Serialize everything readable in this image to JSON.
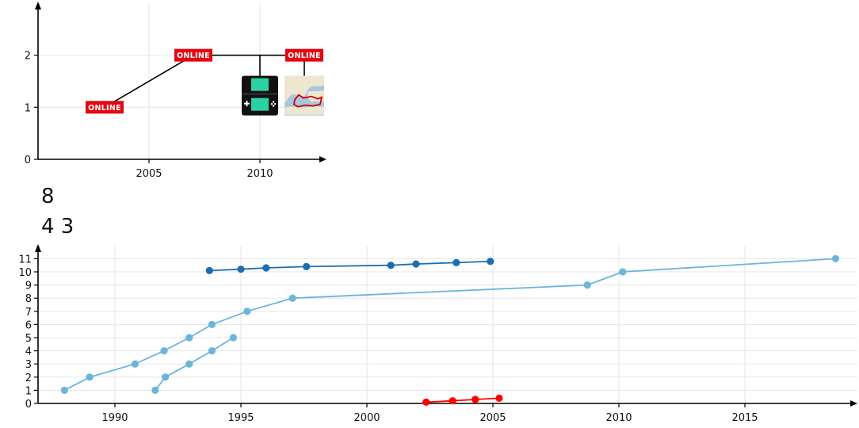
{
  "chart_data": [
    {
      "type": "line",
      "x_ticks": [
        2005,
        2010
      ],
      "y_ticks": [
        0,
        1,
        2
      ],
      "xlim": [
        2000,
        2013
      ],
      "ylim": [
        0,
        3
      ],
      "grid": true,
      "series": [
        {
          "color": "#000000",
          "points": [
            [
              2003,
              1
            ],
            [
              2007,
              2
            ],
            [
              2012,
              2
            ]
          ]
        }
      ],
      "markers": [
        {
          "x": 2003,
          "y": 1,
          "label": "ONLINE",
          "color": "#e30613"
        },
        {
          "x": 2007,
          "y": 2,
          "label": "ONLINE",
          "color": "#e30613"
        },
        {
          "x": 2012,
          "y": 2,
          "label": "ONLINE",
          "color": "#e30613"
        }
      ],
      "images": [
        {
          "icon": "handheld-console-icon",
          "x": 2010,
          "y": 2
        },
        {
          "icon": "map-thumbnail-icon",
          "x": 2012,
          "y": 2
        }
      ]
    },
    {
      "type": "line",
      "x_ticks": [
        1990,
        1995,
        2000,
        2005,
        2010,
        2015
      ],
      "y_ticks": [
        0,
        1,
        2,
        3,
        4,
        5,
        6,
        7,
        8,
        9,
        10,
        11
      ],
      "xlim": [
        1987,
        2020
      ],
      "ylim": [
        0,
        12
      ],
      "grid": true,
      "series": [
        {
          "color": "#1a6fb3",
          "x": [
            1993.75,
            1995,
            1996,
            1997.6,
            2000.95,
            2001.95,
            2003.55,
            2004.9
          ],
          "y": [
            10.1,
            10.2,
            10.3,
            10.4,
            10.5,
            10.6,
            10.7,
            10.8
          ]
        },
        {
          "color": "#6bb5d9",
          "x": [
            1988,
            1989,
            1990.8,
            1991.95,
            1992.95,
            1993.85,
            1995.25,
            1997.05,
            2008.75,
            2010.15,
            2018.6
          ],
          "y": [
            1,
            2,
            3,
            4,
            5,
            6,
            7,
            8,
            9,
            10,
            11
          ]
        },
        {
          "color": "#6bb5d9",
          "x": [
            1991.6,
            1992,
            1992.95,
            1993.85,
            1994.7
          ],
          "y": [
            1,
            2,
            3,
            4,
            5
          ]
        },
        {
          "color": "#ff0000",
          "x": [
            2002.35,
            2003.4,
            2004.3,
            2005.25
          ],
          "y": [
            0.1,
            0.2,
            0.3,
            0.4
          ]
        }
      ]
    }
  ],
  "annotations": {
    "line1": "8",
    "line2": "4 3"
  }
}
